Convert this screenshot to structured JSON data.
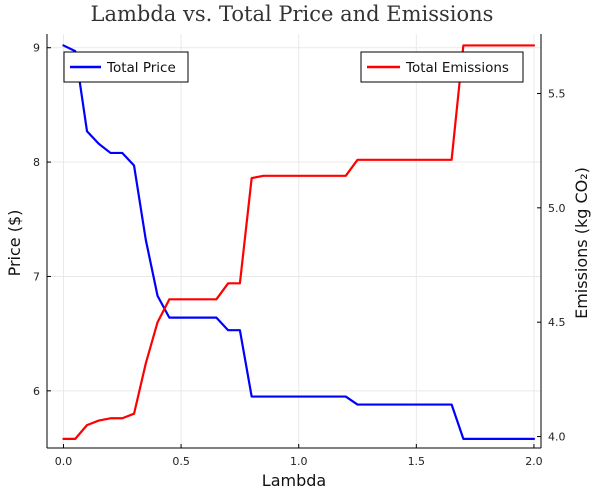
{
  "chart_data": {
    "type": "line",
    "title": "Lambda vs. Total Price and Emissions",
    "xlabel": "Lambda",
    "ylabel_left": "Price ($)",
    "ylabel_right": "Emissions (kg CO₂)",
    "xlim": [
      -0.07,
      2.03
    ],
    "ylim_left": [
      5.5,
      9.12
    ],
    "ylim_right": [
      3.95,
      5.76
    ],
    "xticks": [
      0.0,
      0.5,
      1.0,
      1.5,
      2.0
    ],
    "xtick_labels": [
      "0.0",
      "0.5",
      "1.0",
      "1.5",
      "2.0"
    ],
    "yticks_left": [
      6,
      7,
      8,
      9
    ],
    "ytick_labels_left": [
      "6",
      "7",
      "8",
      "9"
    ],
    "yticks_right": [
      4.0,
      4.5,
      5.0,
      5.5
    ],
    "ytick_labels_right": [
      "4.0",
      "4.5",
      "5.0",
      "5.5"
    ],
    "grid": true,
    "series": [
      {
        "name": "Total Price",
        "axis": "left",
        "color": "#0000ff",
        "legend_position": "top-left",
        "points": [
          [
            0.0,
            9.02
          ],
          [
            0.05,
            8.97
          ],
          [
            0.1,
            8.27
          ],
          [
            0.15,
            8.16
          ],
          [
            0.2,
            8.08
          ],
          [
            0.25,
            8.08
          ],
          [
            0.3,
            7.97
          ],
          [
            0.35,
            7.32
          ],
          [
            0.4,
            6.83
          ],
          [
            0.45,
            6.64
          ],
          [
            0.5,
            6.64
          ],
          [
            0.55,
            6.64
          ],
          [
            0.6,
            6.64
          ],
          [
            0.65,
            6.64
          ],
          [
            0.7,
            6.53
          ],
          [
            0.75,
            6.53
          ],
          [
            0.8,
            5.95
          ],
          [
            0.85,
            5.95
          ],
          [
            0.9,
            5.95
          ],
          [
            0.95,
            5.95
          ],
          [
            1.0,
            5.95
          ],
          [
            1.05,
            5.95
          ],
          [
            1.1,
            5.95
          ],
          [
            1.15,
            5.95
          ],
          [
            1.2,
            5.95
          ],
          [
            1.25,
            5.88
          ],
          [
            1.3,
            5.88
          ],
          [
            1.35,
            5.88
          ],
          [
            1.4,
            5.88
          ],
          [
            1.45,
            5.88
          ],
          [
            1.5,
            5.88
          ],
          [
            1.55,
            5.88
          ],
          [
            1.6,
            5.88
          ],
          [
            1.65,
            5.88
          ],
          [
            1.7,
            5.58
          ],
          [
            1.75,
            5.58
          ],
          [
            1.8,
            5.58
          ],
          [
            1.85,
            5.58
          ],
          [
            1.9,
            5.58
          ],
          [
            1.95,
            5.58
          ],
          [
            2.0,
            5.58
          ]
        ]
      },
      {
        "name": "Total Emissions",
        "axis": "right",
        "color": "#ff0000",
        "legend_position": "top-right",
        "points": [
          [
            0.0,
            3.99
          ],
          [
            0.05,
            3.99
          ],
          [
            0.1,
            4.05
          ],
          [
            0.15,
            4.07
          ],
          [
            0.2,
            4.08
          ],
          [
            0.25,
            4.08
          ],
          [
            0.3,
            4.1
          ],
          [
            0.35,
            4.32
          ],
          [
            0.4,
            4.5
          ],
          [
            0.45,
            4.6
          ],
          [
            0.5,
            4.6
          ],
          [
            0.55,
            4.6
          ],
          [
            0.6,
            4.6
          ],
          [
            0.65,
            4.6
          ],
          [
            0.7,
            4.67
          ],
          [
            0.75,
            4.67
          ],
          [
            0.8,
            5.13
          ],
          [
            0.85,
            5.14
          ],
          [
            0.9,
            5.14
          ],
          [
            0.95,
            5.14
          ],
          [
            1.0,
            5.14
          ],
          [
            1.05,
            5.14
          ],
          [
            1.1,
            5.14
          ],
          [
            1.15,
            5.14
          ],
          [
            1.2,
            5.14
          ],
          [
            1.25,
            5.21
          ],
          [
            1.3,
            5.21
          ],
          [
            1.35,
            5.21
          ],
          [
            1.4,
            5.21
          ],
          [
            1.45,
            5.21
          ],
          [
            1.5,
            5.21
          ],
          [
            1.55,
            5.21
          ],
          [
            1.6,
            5.21
          ],
          [
            1.65,
            5.21
          ],
          [
            1.7,
            5.71
          ],
          [
            1.75,
            5.71
          ],
          [
            1.8,
            5.71
          ],
          [
            1.85,
            5.71
          ],
          [
            1.9,
            5.71
          ],
          [
            1.95,
            5.71
          ],
          [
            2.0,
            5.71
          ]
        ]
      }
    ]
  }
}
